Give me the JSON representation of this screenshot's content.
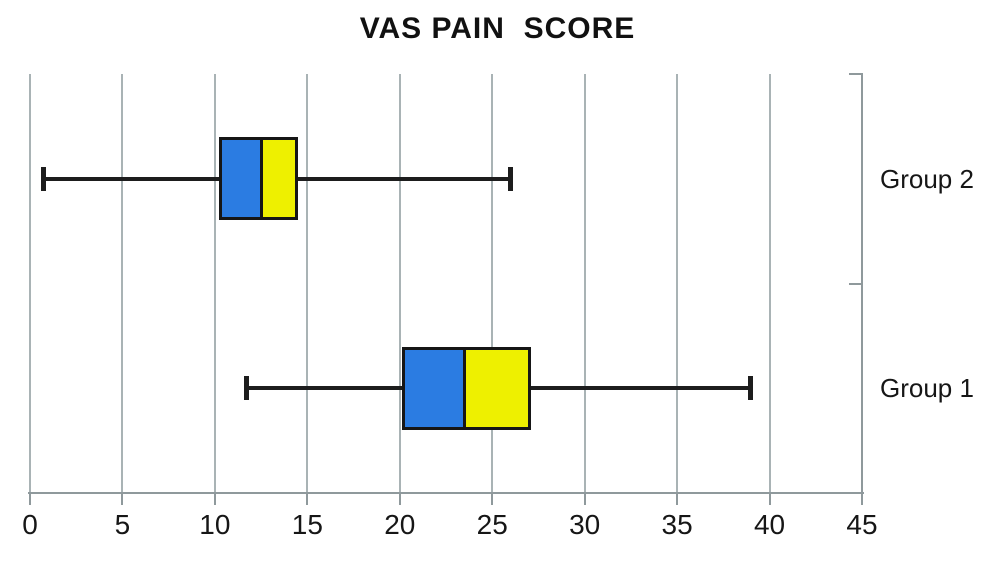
{
  "figure": {
    "title": "VAS PAIN  SCORE"
  },
  "chart_data": {
    "type": "boxplot",
    "orientation": "horizontal",
    "title": "VAS PAIN  SCORE",
    "x_axis": {
      "min": 0,
      "max": 45,
      "tick_step": 5,
      "ticks": [
        0,
        5,
        10,
        15,
        20,
        25,
        30,
        35,
        40,
        45
      ]
    },
    "y_axis": {
      "categories_top_to_bottom": [
        "Group 2",
        "Group 1"
      ]
    },
    "series": [
      {
        "name": "Group 2",
        "min": 0.7,
        "q1": 10.2,
        "median": 12.5,
        "q3": 14.5,
        "max": 26
      },
      {
        "name": "Group 1",
        "min": 11.7,
        "q1": 20.1,
        "median": 23.5,
        "q3": 27.1,
        "max": 39
      }
    ],
    "legend": "none",
    "grid": "vertical",
    "style": {
      "box_lower_fill": "#2B7CE2",
      "box_upper_fill": "#EEF000",
      "box_border": "#161616",
      "whisker_color": "#1D1D1D",
      "gridline_color": "#A9B3B5",
      "axis_color": "#8F999C",
      "text_color": "#161616",
      "background": "#FFFFFF"
    }
  }
}
